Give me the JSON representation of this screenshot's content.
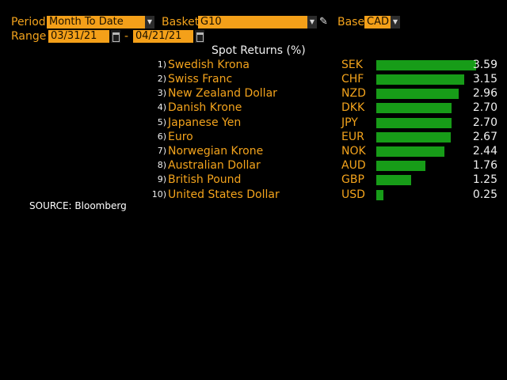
{
  "controls": {
    "period_label": "Period",
    "period_value": "Month To Date",
    "basket_label": "Basket",
    "basket_value": "G10",
    "base_label": "Base",
    "base_value": "CAD",
    "range_label": "Range",
    "range_start": "03/31/21",
    "range_separator": "-",
    "range_end": "04/21/21"
  },
  "icons": {
    "dropdown": "chevron-down-icon",
    "calendar": "calendar-icon",
    "edit": "pencil-icon"
  },
  "table_title": "Spot Returns (%)",
  "bar_color": "#179c18",
  "accent_color": "#f3a31c",
  "rows": [
    {
      "rank": "1)",
      "name": "Swedish Krona",
      "code": "SEK",
      "value": "3.59",
      "num": 3.59
    },
    {
      "rank": "2)",
      "name": "Swiss Franc",
      "code": "CHF",
      "value": "3.15",
      "num": 3.15
    },
    {
      "rank": "3)",
      "name": "New Zealand Dollar",
      "code": "NZD",
      "value": "2.96",
      "num": 2.96
    },
    {
      "rank": "4)",
      "name": "Danish Krone",
      "code": "DKK",
      "value": "2.70",
      "num": 2.7
    },
    {
      "rank": "5)",
      "name": "Japanese Yen",
      "code": "JPY",
      "value": "2.70",
      "num": 2.7
    },
    {
      "rank": "6)",
      "name": "Euro",
      "code": "EUR",
      "value": "2.67",
      "num": 2.67
    },
    {
      "rank": "7)",
      "name": "Norwegian Krone",
      "code": "NOK",
      "value": "2.44",
      "num": 2.44
    },
    {
      "rank": "8)",
      "name": "Australian Dollar",
      "code": "AUD",
      "value": "1.76",
      "num": 1.76
    },
    {
      "rank": "9)",
      "name": "British Pound",
      "code": "GBP",
      "value": "1.25",
      "num": 1.25
    },
    {
      "rank": "10)",
      "name": "United States Dollar",
      "code": "USD",
      "value": "0.25",
      "num": 0.25
    }
  ],
  "source": "SOURCE: Bloomberg"
}
